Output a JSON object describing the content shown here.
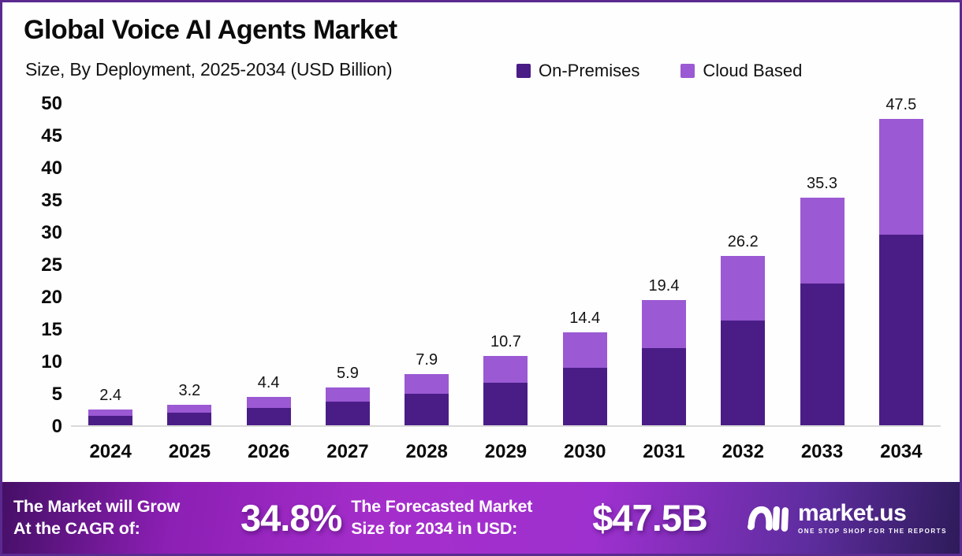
{
  "header": {
    "title": "Global Voice AI Agents Market",
    "subtitle": "Size, By Deployment, 2025-2034 (USD Billion)"
  },
  "chart_data": {
    "type": "bar",
    "stacked": true,
    "title": "Global Voice AI Agents Market",
    "subtitle": "Size, By Deployment, 2025-2034 (USD Billion)",
    "unit": "USD Billion",
    "categories": [
      "2024",
      "2025",
      "2026",
      "2027",
      "2028",
      "2029",
      "2030",
      "2031",
      "2032",
      "2033",
      "2034"
    ],
    "totals": [
      2.4,
      3.2,
      4.4,
      5.9,
      7.9,
      10.7,
      14.4,
      19.4,
      26.2,
      35.3,
      47.5
    ],
    "series": [
      {
        "name": "On-Premises",
        "color": "#4A1D86",
        "values": [
          1.5,
          2.0,
          2.7,
          3.7,
          4.9,
          6.6,
          8.9,
          12.0,
          16.2,
          21.9,
          29.5
        ]
      },
      {
        "name": "Cloud Based",
        "color": "#9B59D3",
        "values": [
          0.9,
          1.2,
          1.7,
          2.2,
          3.0,
          4.1,
          5.5,
          7.4,
          10.0,
          13.4,
          18.0
        ]
      }
    ],
    "y_ticks": [
      0,
      5,
      10,
      15,
      20,
      25,
      30,
      35,
      40,
      45,
      50
    ],
    "ylim": [
      0,
      50
    ],
    "grid": false,
    "legend_position": "top-right"
  },
  "banner": {
    "cagr_label_line1": "The Market will Grow",
    "cagr_label_line2": "At the CAGR of:",
    "cagr_value": "34.8%",
    "forecast_label_line1": "The Forecasted Market",
    "forecast_label_line2": "Size for 2034 in USD:",
    "forecast_value": "$47.5B",
    "brand": {
      "name": "market.us",
      "tagline": "ONE STOP SHOP FOR THE REPORTS"
    }
  },
  "colors": {
    "frame_border": "#5B2A90",
    "on_premises": "#4A1D86",
    "cloud_based": "#9B59D3",
    "baseline": "#d9d9d9",
    "banner_gradient_left": "#450f66",
    "banner_gradient_mid": "#a52ecb",
    "banner_gradient_right": "#2e1b5a"
  }
}
